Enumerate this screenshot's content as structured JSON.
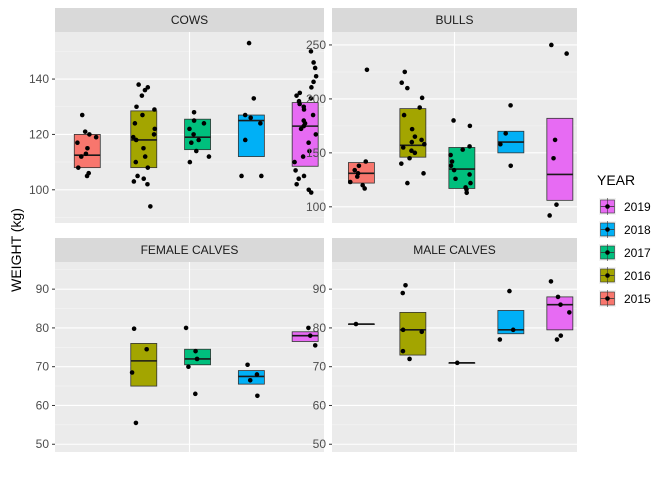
{
  "chart_data": {
    "type": "box",
    "ylabel": "WEIGHT (kg)",
    "legend": {
      "title": "YEAR",
      "placement": "right",
      "entries": [
        "2019",
        "2018",
        "2017",
        "2016",
        "2015"
      ]
    },
    "colors": {
      "2015": "#F8766D",
      "2016": "#A3A500",
      "2017": "#00BF7D",
      "2018": "#00B0F6",
      "2019": "#E76BF3"
    },
    "panels": [
      {
        "title": "COWS",
        "ylim": [
          88,
          157
        ],
        "yticks": [
          100,
          120,
          140
        ],
        "groups": [
          {
            "year": "2015",
            "slot": 0,
            "box": {
              "q1": 108,
              "median": 112.5,
              "q3": 120
            },
            "points": [
              105,
              106,
              108,
              112,
              113,
              115,
              117,
              119,
              120,
              121,
              127
            ]
          },
          {
            "year": "2016",
            "slot": 1,
            "box": {
              "q1": 108,
              "median": 118,
              "q3": 128.5
            },
            "points": [
              94,
              102,
              103,
              104,
              105,
              108,
              110,
              112,
              115,
              118,
              119,
              120,
              122,
              124,
              127,
              129,
              130,
              134,
              136,
              137,
              138
            ]
          },
          {
            "year": "2017",
            "slot": 2,
            "box": {
              "q1": 114.5,
              "median": 119,
              "q3": 125.5
            },
            "points": [
              110,
              112,
              114,
              117,
              118,
              120,
              122,
              124,
              125,
              128
            ]
          },
          {
            "year": "2018",
            "slot": 3,
            "box": {
              "q1": 112,
              "median": 125,
              "q3": 127
            },
            "points": [
              105,
              105,
              118,
              124,
              126,
              127,
              133,
              153
            ]
          },
          {
            "year": "2019",
            "slot": 4,
            "box": {
              "q1": 108.5,
              "median": 123,
              "q3": 131.5
            },
            "points": [
              99,
              100,
              102,
              104,
              105,
              107,
              110,
              112,
              114,
              117,
              120,
              122,
              123,
              124,
              125,
              127,
              129,
              130,
              131,
              132,
              133,
              134,
              135,
              137,
              139,
              141,
              144,
              146,
              150
            ]
          }
        ]
      },
      {
        "title": "BULLS",
        "ylim": [
          85,
          262
        ],
        "yticks": [
          100,
          150,
          200,
          250
        ],
        "groups": [
          {
            "year": "2015",
            "slot": 0,
            "box": {
              "q1": 122,
              "median": 131,
              "q3": 141
            },
            "points": [
              117,
              120,
              123,
              128,
              131,
              134,
              138,
              142,
              227
            ]
          },
          {
            "year": "2016",
            "slot": 1,
            "box": {
              "q1": 146,
              "median": 157,
              "q3": 191
            },
            "points": [
              122,
              131,
              140,
              145,
              150,
              152,
              155,
              158,
              160,
              162,
              165,
              172,
              185,
              192,
              201,
              210,
              215,
              225
            ]
          },
          {
            "year": "2017",
            "slot": 2,
            "box": {
              "q1": 117,
              "median": 135,
              "q3": 155
            },
            "points": [
              113,
              116,
              118,
              122,
              126,
              130,
              134,
              138,
              142,
              148,
              153,
              156,
              175,
              180
            ]
          },
          {
            "year": "2018",
            "slot": 3,
            "box": {
              "q1": 150,
              "median": 160,
              "q3": 170
            },
            "points": [
              138,
              158,
              168,
              194
            ]
          },
          {
            "year": "2019",
            "slot": 4,
            "box": {
              "q1": 106,
              "median": 130,
              "q3": 182
            },
            "points": [
              92,
              102,
              145,
              162,
              242,
              250
            ]
          }
        ]
      },
      {
        "title": "FEMALE CALVES",
        "ylim": [
          48,
          97
        ],
        "yticks": [
          50,
          60,
          70,
          80,
          90
        ],
        "groups": [
          {
            "year": "2016",
            "slot": 1,
            "box": {
              "q1": 65,
              "median": 71.5,
              "q3": 76
            },
            "points": [
              55.5,
              68.5,
              74.5,
              79.8
            ]
          },
          {
            "year": "2017",
            "slot": 2,
            "box": {
              "q1": 70.5,
              "median": 72,
              "q3": 74.5
            },
            "points": [
              63,
              70,
              72,
              74,
              80
            ]
          },
          {
            "year": "2018",
            "slot": 3,
            "box": {
              "q1": 65.5,
              "median": 67.5,
              "q3": 69
            },
            "points": [
              62.5,
              66.5,
              68,
              70.5
            ]
          },
          {
            "year": "2019",
            "slot": 4,
            "box": {
              "q1": 76.5,
              "median": 78,
              "q3": 79
            },
            "points": [
              75.5,
              78,
              80
            ]
          }
        ]
      },
      {
        "title": "MALE CALVES",
        "ylim": [
          48,
          97
        ],
        "yticks": [
          50,
          60,
          70,
          80,
          90
        ],
        "groups": [
          {
            "year": "2015",
            "slot": 0,
            "box": {
              "q1": 81,
              "median": 81,
              "q3": 81
            },
            "points": [
              81
            ]
          },
          {
            "year": "2016",
            "slot": 1,
            "box": {
              "q1": 73,
              "median": 79.5,
              "q3": 84
            },
            "points": [
              72,
              74,
              79,
              79.5,
              89,
              91
            ]
          },
          {
            "year": "2017",
            "slot": 2,
            "box": {
              "q1": 71,
              "median": 71,
              "q3": 71
            },
            "points": [
              71
            ]
          },
          {
            "year": "2018",
            "slot": 3,
            "box": {
              "q1": 78.5,
              "median": 79.5,
              "q3": 84.5
            },
            "points": [
              77,
              79.5,
              89.5
            ]
          },
          {
            "year": "2019",
            "slot": 4,
            "box": {
              "q1": 79.5,
              "median": 86,
              "q3": 88
            },
            "points": [
              77,
              78,
              84,
              86,
              88,
              92
            ]
          }
        ]
      }
    ]
  }
}
